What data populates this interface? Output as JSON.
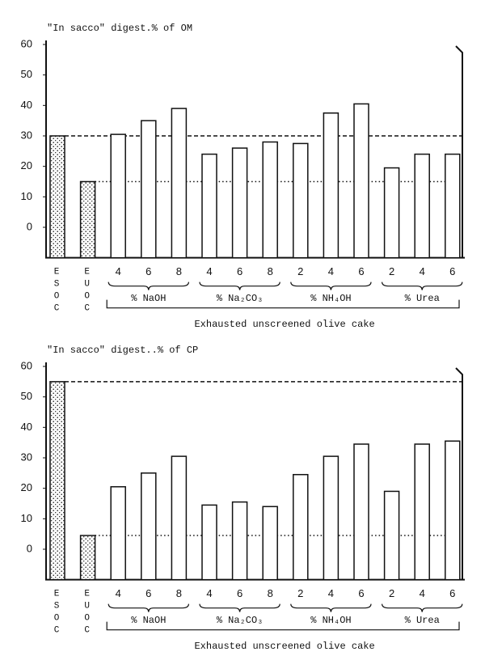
{
  "chart_data": [
    {
      "type": "bar",
      "title": "\"In sacco\" digest.% of OM",
      "ylim": [
        -10,
        60
      ],
      "yticks": [
        0,
        10,
        20,
        30,
        40,
        50,
        60
      ],
      "controls": {
        "categories": [
          "ESOC",
          "EUOC"
        ],
        "values": [
          30,
          15
        ]
      },
      "groups": [
        {
          "name": "% NaOH",
          "categories": [
            "4",
            "6",
            "8"
          ],
          "values": [
            30.5,
            35,
            39
          ]
        },
        {
          "name": "% Na₂CO₃",
          "categories": [
            "4",
            "6",
            "8"
          ],
          "values": [
            24,
            26,
            28
          ]
        },
        {
          "name": "% NH₄OH",
          "categories": [
            "2",
            "4",
            "6"
          ],
          "values": [
            27.5,
            37.5,
            40.5
          ]
        },
        {
          "name": "% Urea",
          "categories": [
            "2",
            "4",
            "6"
          ],
          "values": [
            19.5,
            24,
            24
          ]
        }
      ],
      "group_label": "Exhausted unscreened olive cake"
    },
    {
      "type": "bar",
      "title": "\"In sacco\" digest..% of CP",
      "ylim": [
        -10,
        60
      ],
      "yticks": [
        0,
        10,
        20,
        30,
        40,
        50,
        60
      ],
      "controls": {
        "categories": [
          "ESOC",
          "EUOC"
        ],
        "values": [
          55,
          4.5
        ]
      },
      "groups": [
        {
          "name": "% NaOH",
          "categories": [
            "4",
            "6",
            "8"
          ],
          "values": [
            20.5,
            25,
            30.5
          ]
        },
        {
          "name": "% Na₂CO₃",
          "categories": [
            "4",
            "6",
            "8"
          ],
          "values": [
            14.5,
            15.5,
            14
          ]
        },
        {
          "name": "% NH₄OH",
          "categories": [
            "2",
            "4",
            "6"
          ],
          "values": [
            24.5,
            30.5,
            34.5
          ]
        },
        {
          "name": "% Urea",
          "categories": [
            "2",
            "4",
            "6"
          ],
          "values": [
            19,
            34.5,
            35.5
          ]
        }
      ],
      "group_label": "Exhausted unscreened olive cake"
    }
  ]
}
